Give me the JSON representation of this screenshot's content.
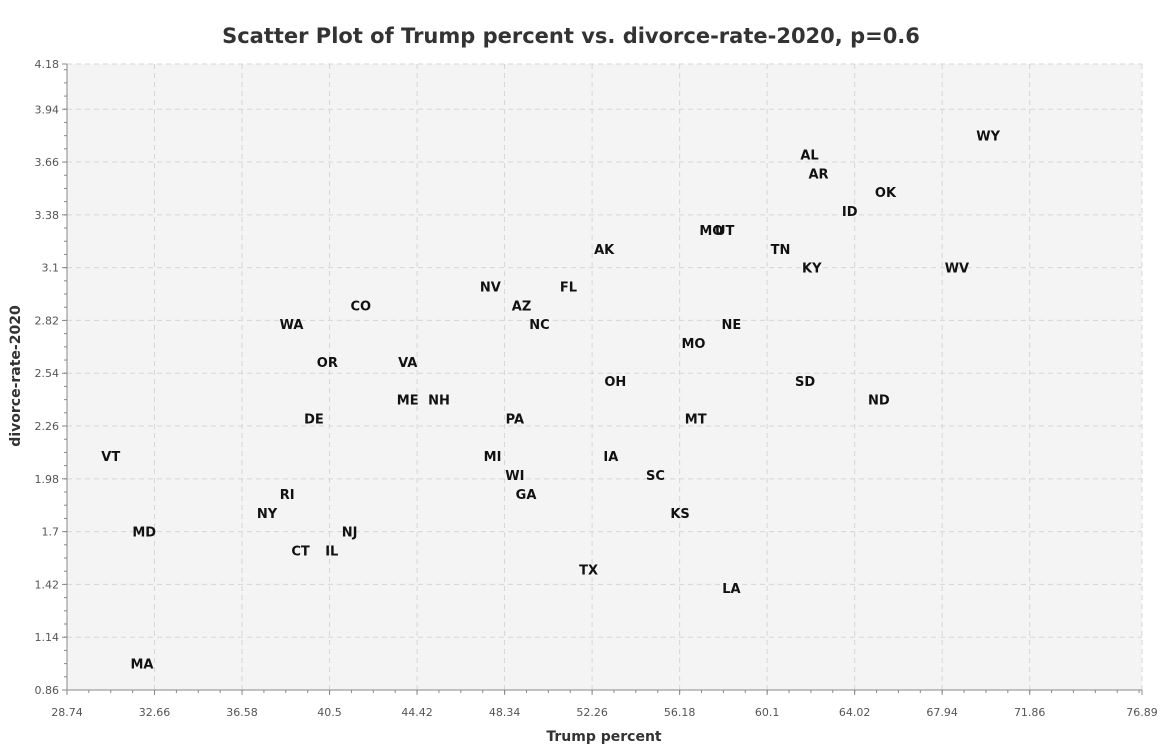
{
  "chart_data": {
    "type": "scatter",
    "title": "Scatter Plot of Trump percent vs. divorce-rate-2020, p=0.6",
    "xlabel": "Trump percent",
    "ylabel": "divorce-rate-2020",
    "xlim": [
      28.74,
      76.89
    ],
    "ylim": [
      0.86,
      4.18
    ],
    "xticks": [
      "28.74",
      "32.66",
      "36.58",
      "40.5",
      "44.42",
      "48.34",
      "52.26",
      "56.18",
      "60.1",
      "64.02",
      "67.94",
      "71.86",
      "76.89"
    ],
    "yticks": [
      "0.86",
      "1.14",
      "1.42",
      "1.7",
      "1.98",
      "2.26",
      "2.54",
      "2.82",
      "3.1",
      "3.38",
      "3.66",
      "3.94",
      "4.18"
    ],
    "grid": true,
    "points": [
      {
        "label": "WY",
        "x": 70.0,
        "y": 3.8
      },
      {
        "label": "AL",
        "x": 62.0,
        "y": 3.7
      },
      {
        "label": "AR",
        "x": 62.4,
        "y": 3.6
      },
      {
        "label": "OK",
        "x": 65.4,
        "y": 3.5
      },
      {
        "label": "ID",
        "x": 63.8,
        "y": 3.4
      },
      {
        "label": "MO",
        "x": 57.6,
        "y": 3.3
      },
      {
        "label": "UT",
        "x": 58.2,
        "y": 3.3
      },
      {
        "label": "AK",
        "x": 52.8,
        "y": 3.2
      },
      {
        "label": "TN",
        "x": 60.7,
        "y": 3.2
      },
      {
        "label": "KY",
        "x": 62.1,
        "y": 3.1
      },
      {
        "label": "WV",
        "x": 68.6,
        "y": 3.1
      },
      {
        "label": "NV",
        "x": 47.7,
        "y": 3.0
      },
      {
        "label": "FL",
        "x": 51.2,
        "y": 3.0
      },
      {
        "label": "CO",
        "x": 41.9,
        "y": 2.9
      },
      {
        "label": "AZ",
        "x": 49.1,
        "y": 2.9
      },
      {
        "label": "WA",
        "x": 38.8,
        "y": 2.8
      },
      {
        "label": "NC",
        "x": 49.9,
        "y": 2.8
      },
      {
        "label": "NE",
        "x": 58.5,
        "y": 2.8
      },
      {
        "label": "MO",
        "x": 56.8,
        "y": 2.7
      },
      {
        "label": "OR",
        "x": 40.4,
        "y": 2.6
      },
      {
        "label": "VA",
        "x": 44.0,
        "y": 2.6
      },
      {
        "label": "OH",
        "x": 53.3,
        "y": 2.5
      },
      {
        "label": "SD",
        "x": 61.8,
        "y": 2.5
      },
      {
        "label": "ME",
        "x": 44.0,
        "y": 2.4
      },
      {
        "label": "NH",
        "x": 45.4,
        "y": 2.4
      },
      {
        "label": "ND",
        "x": 65.1,
        "y": 2.4
      },
      {
        "label": "DE",
        "x": 39.8,
        "y": 2.3
      },
      {
        "label": "PA",
        "x": 48.8,
        "y": 2.3
      },
      {
        "label": "MT",
        "x": 56.9,
        "y": 2.3
      },
      {
        "label": "VT",
        "x": 30.7,
        "y": 2.1
      },
      {
        "label": "MI",
        "x": 47.8,
        "y": 2.1
      },
      {
        "label": "IA",
        "x": 53.1,
        "y": 2.1
      },
      {
        "label": "WI",
        "x": 48.8,
        "y": 2.0
      },
      {
        "label": "SC",
        "x": 55.1,
        "y": 2.0
      },
      {
        "label": "RI",
        "x": 38.6,
        "y": 1.9
      },
      {
        "label": "GA",
        "x": 49.3,
        "y": 1.9
      },
      {
        "label": "NY",
        "x": 37.7,
        "y": 1.8
      },
      {
        "label": "KS",
        "x": 56.2,
        "y": 1.8
      },
      {
        "label": "MD",
        "x": 32.2,
        "y": 1.7
      },
      {
        "label": "NJ",
        "x": 41.4,
        "y": 1.7
      },
      {
        "label": "CT",
        "x": 39.2,
        "y": 1.6
      },
      {
        "label": "IL",
        "x": 40.6,
        "y": 1.6
      },
      {
        "label": "TX",
        "x": 52.1,
        "y": 1.5
      },
      {
        "label": "LA",
        "x": 58.5,
        "y": 1.4
      },
      {
        "label": "MA",
        "x": 32.1,
        "y": 1.0
      }
    ]
  }
}
